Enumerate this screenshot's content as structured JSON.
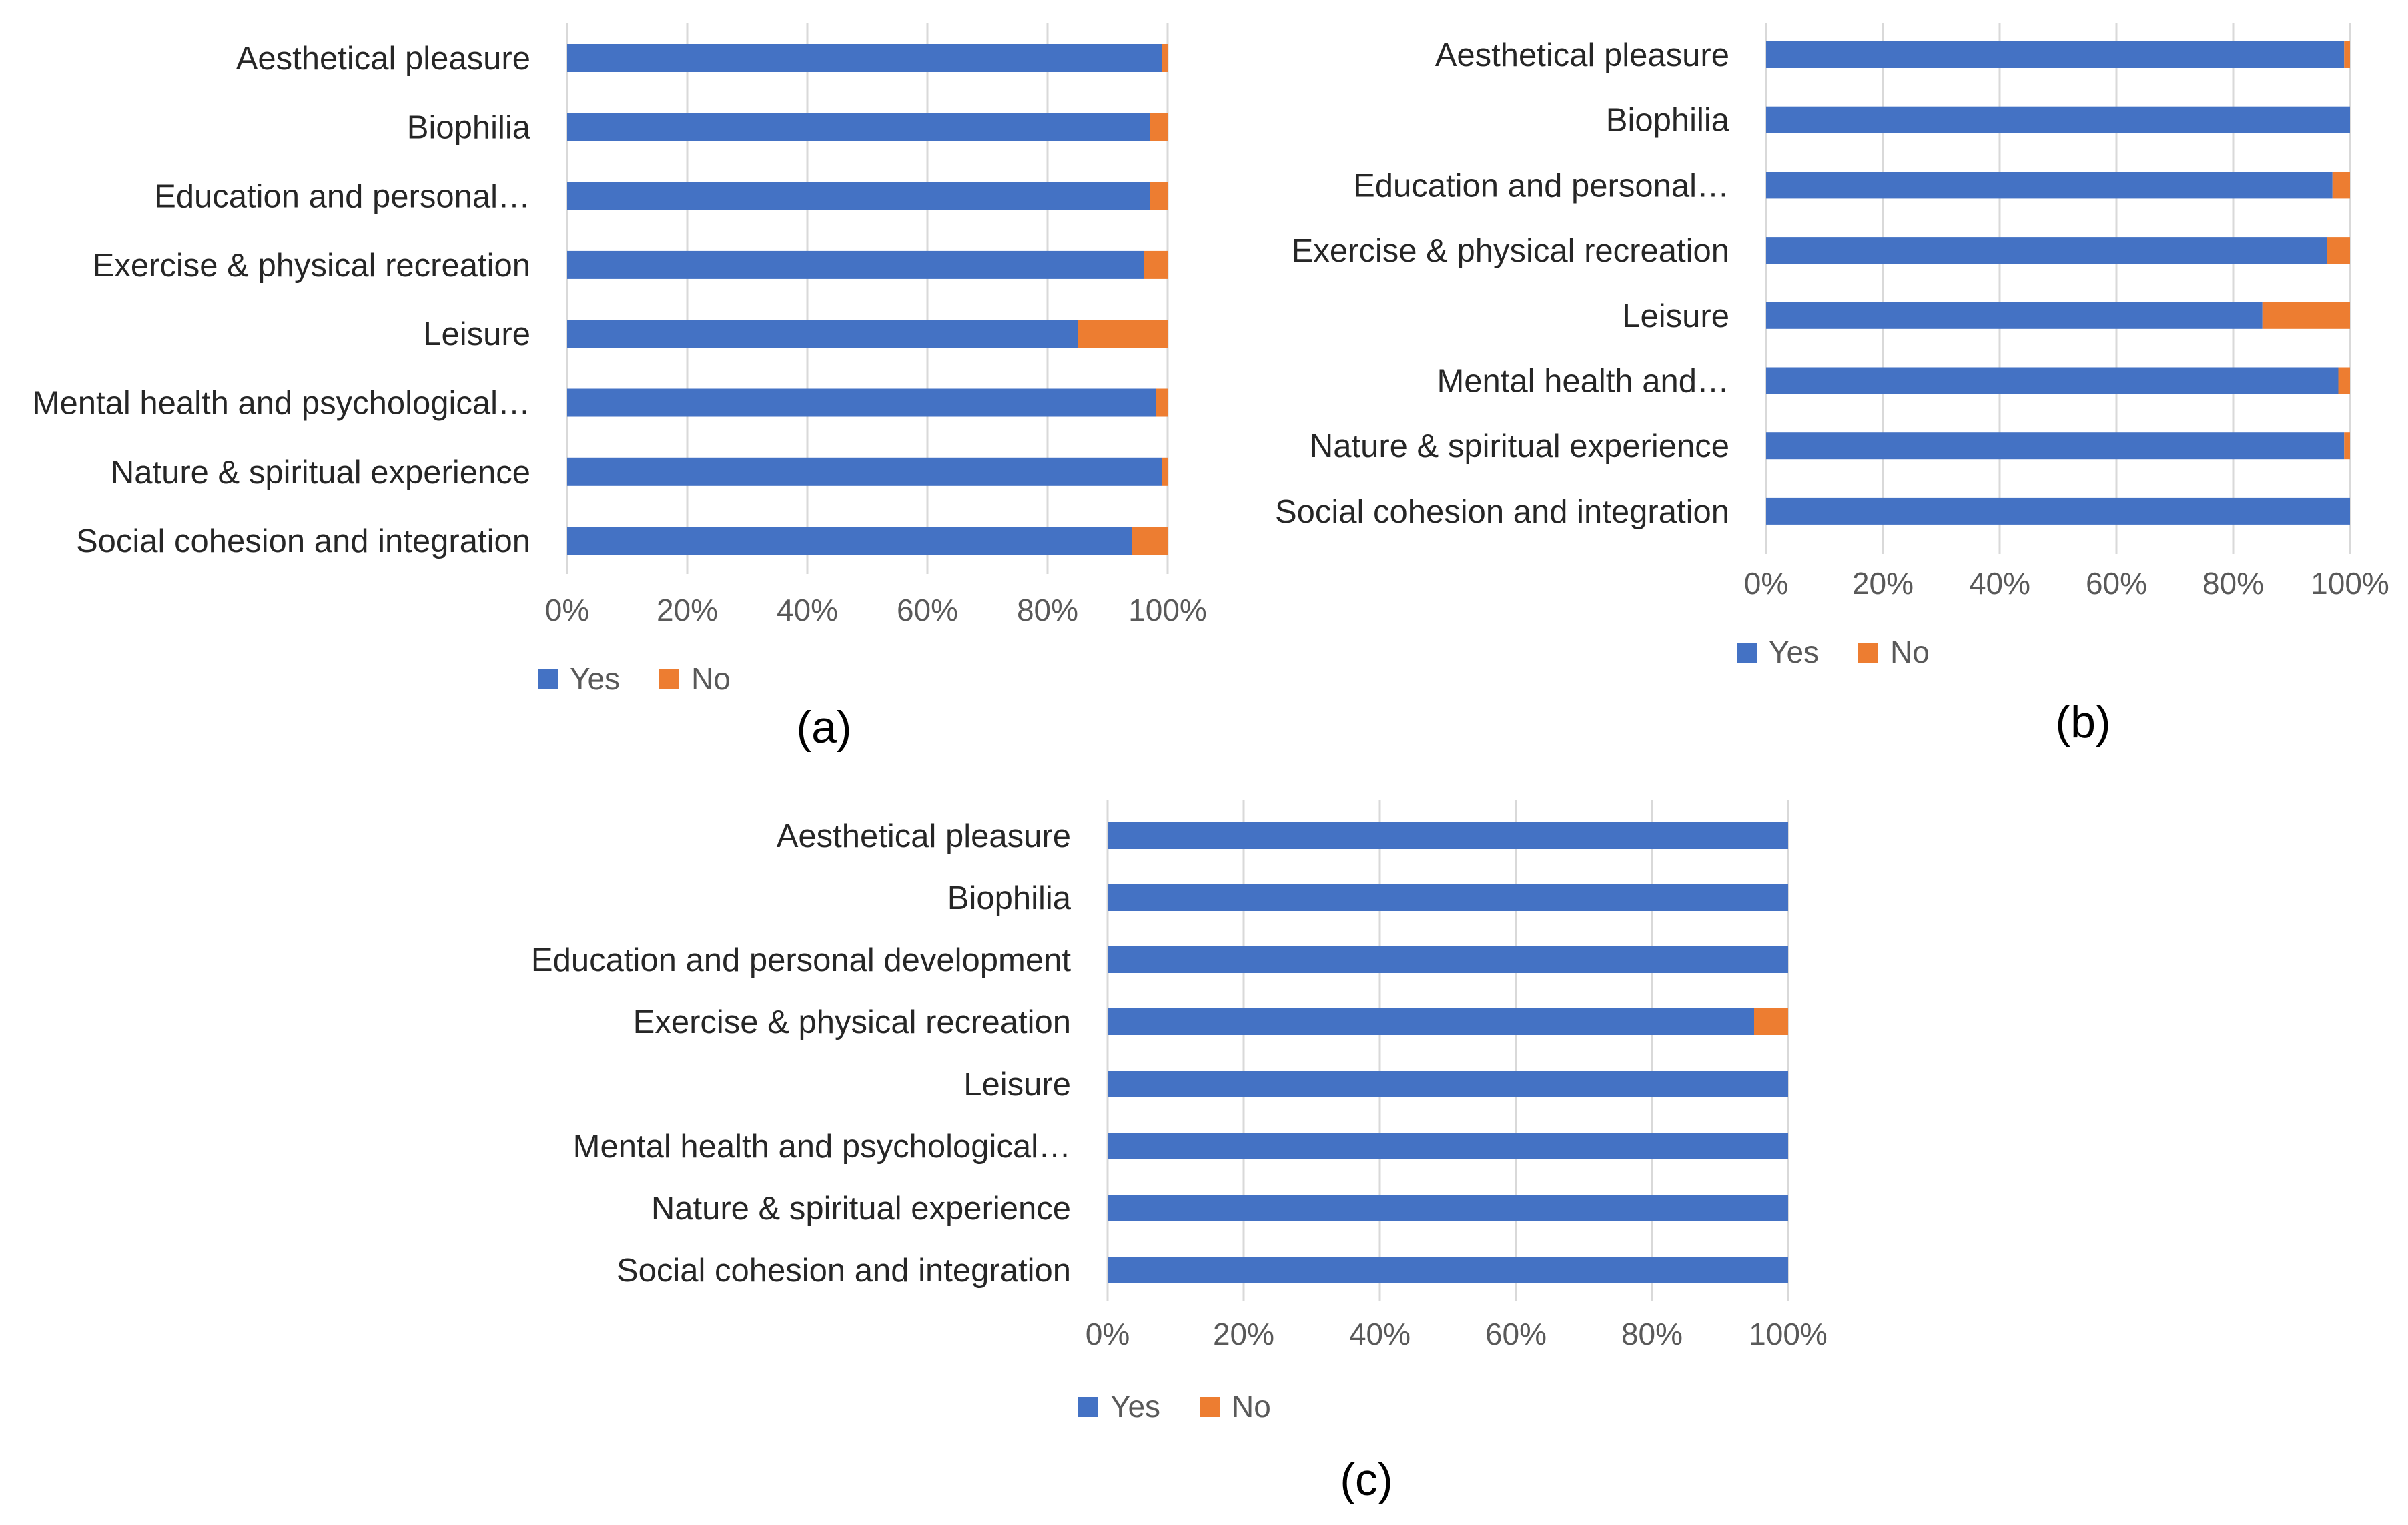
{
  "colors": {
    "yes": "#4472C4",
    "no": "#ED7D31",
    "grid": "#D9D9D9"
  },
  "chart_data": [
    {
      "type": "bar",
      "orientation": "horizontal",
      "stacked": "percent",
      "caption": "(a)",
      "categories": [
        "Aesthetical pleasure",
        "Biophilia",
        "Education and personal…",
        "Exercise & physical recreation",
        "Leisure",
        "Mental health and psychological…",
        "Nature & spiritual experience",
        "Social cohesion and integration"
      ],
      "series": [
        {
          "name": "Yes",
          "values": [
            99,
            97,
            97,
            96,
            85,
            98,
            99,
            94
          ]
        },
        {
          "name": "No",
          "values": [
            1,
            3,
            3,
            4,
            15,
            2,
            1,
            6
          ]
        }
      ],
      "xticks": [
        "0%",
        "20%",
        "40%",
        "60%",
        "80%",
        "100%"
      ],
      "xlim": [
        0,
        100
      ],
      "grid": true,
      "legend": "bottom"
    },
    {
      "type": "bar",
      "orientation": "horizontal",
      "stacked": "percent",
      "caption": "(b)",
      "categories": [
        "Aesthetical pleasure",
        "Biophilia",
        "Education and personal…",
        "Exercise & physical recreation",
        "Leisure",
        "Mental health and…",
        "Nature & spiritual experience",
        "Social cohesion and integration"
      ],
      "series": [
        {
          "name": "Yes",
          "values": [
            99,
            100,
            97,
            96,
            85,
            98,
            99,
            100
          ]
        },
        {
          "name": "No",
          "values": [
            1,
            0,
            3,
            4,
            15,
            2,
            1,
            0
          ]
        }
      ],
      "xticks": [
        "0%",
        "20%",
        "40%",
        "60%",
        "80%",
        "100%"
      ],
      "xlim": [
        0,
        100
      ],
      "grid": true,
      "legend": "bottom"
    },
    {
      "type": "bar",
      "orientation": "horizontal",
      "stacked": "percent",
      "caption": "(c)",
      "categories": [
        "Aesthetical pleasure",
        "Biophilia",
        "Education and personal development",
        "Exercise & physical recreation",
        "Leisure",
        "Mental health and psychological…",
        "Nature & spiritual experience",
        "Social cohesion and integration"
      ],
      "series": [
        {
          "name": "Yes",
          "values": [
            100,
            100,
            100,
            95,
            100,
            100,
            100,
            100
          ]
        },
        {
          "name": "No",
          "values": [
            0,
            0,
            0,
            5,
            0,
            0,
            0,
            0
          ]
        }
      ],
      "xticks": [
        "0%",
        "20%",
        "40%",
        "60%",
        "80%",
        "100%"
      ],
      "xlim": [
        0,
        100
      ],
      "grid": true,
      "legend": "bottom"
    }
  ]
}
